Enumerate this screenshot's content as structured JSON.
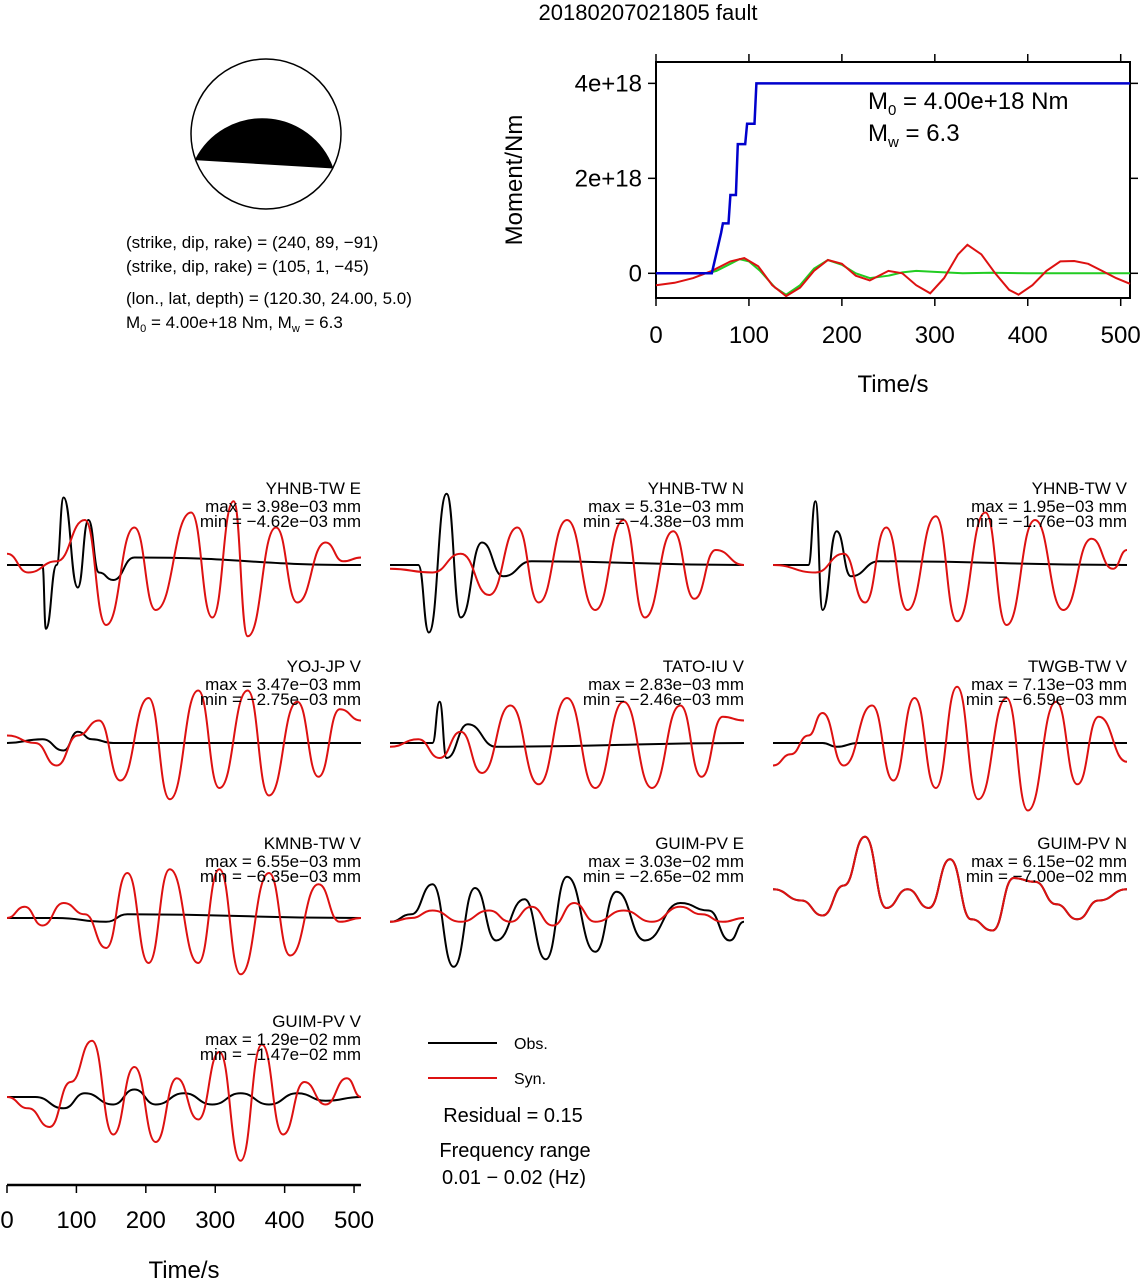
{
  "title": "20180207021805 fault",
  "mechanism": {
    "lines": [
      "(strike, dip, rake) = (240, 89, −91)",
      "(strike, dip, rake) = (105, 1, −45)",
      "(lon., lat, depth) = (120.30, 24.00, 5.0)"
    ],
    "m0_text": "M",
    "m0_sub": "0",
    "m0_mid": " = 4.00e+18 Nm, M",
    "mw_sub": "w",
    "mw_end": " = 6.3"
  },
  "moment_chart": {
    "type": "line",
    "xlabel": "Time/s",
    "ylabel": "Moment/Nm",
    "xlim": [
      0,
      510
    ],
    "ylim": [
      -5.2e+17,
      4.45e+18
    ],
    "x_ticks": [
      "0",
      "100",
      "200",
      "300",
      "400",
      "500"
    ],
    "y_ticks": [
      "0",
      "2e+18",
      "4e+18"
    ],
    "annot_m0": {
      "sym": "M",
      "sub": "0",
      "rest": " = 4.00e+18 Nm"
    },
    "annot_mw": {
      "sym": "M",
      "sub": "w",
      "rest": " = 6.3"
    },
    "colors": {
      "cumulative": "#0000cc",
      "rate_green": "#22cc22",
      "rate_red": "#dd1111"
    },
    "cumulative": {
      "x": [
        0,
        60,
        70,
        72,
        78,
        80,
        86,
        88,
        96,
        98,
        106,
        108,
        510
      ],
      "y": [
        0,
        0,
        8.5e+17,
        1.05e+18,
        1.05e+18,
        1.65e+18,
        1.65e+18,
        2.72e+18,
        2.72e+18,
        3.15e+18,
        3.15e+18,
        4e+18,
        4e+18
      ]
    },
    "rate_green": {
      "x": [
        0,
        55,
        65,
        80,
        90,
        100,
        112,
        128,
        140,
        155,
        170,
        185,
        200,
        215,
        230,
        250,
        265,
        280,
        300,
        330,
        360,
        400,
        450,
        510
      ],
      "y": [
        0,
        0,
        5e+16,
        2e+17,
        3e+17,
        2.5e+17,
        5e+16,
        -3e+17,
        -4.5e+17,
        -2.5e+17,
        1e+17,
        2.8e+17,
        1.8e+17,
        0,
        -1e+17,
        -5e+16,
        2e+16,
        5e+16,
        3e+16,
        0,
        1e+16,
        0,
        0,
        0
      ]
    },
    "rate_red": {
      "x": [
        0,
        20,
        40,
        60,
        80,
        95,
        110,
        125,
        140,
        155,
        170,
        185,
        200,
        215,
        230,
        250,
        265,
        280,
        295,
        310,
        325,
        335,
        350,
        365,
        380,
        390,
        405,
        420,
        435,
        450,
        465,
        480,
        495,
        510
      ],
      "y": [
        -2.5e+17,
        -2e+17,
        -1e+17,
        5e+16,
        2.5e+17,
        3.2e+17,
        1.5e+17,
        -2.5e+17,
        -4.8e+17,
        -3e+17,
        5e+16,
        2.8e+17,
        2e+17,
        -5e+16,
        -1.5e+17,
        5e+16,
        0,
        -2.5e+17,
        -4.2e+17,
        -1e+17,
        4e+17,
        6e+17,
        4e+17,
        0,
        -3.5e+17,
        -4.5e+17,
        -2.5e+17,
        5e+16,
        2.5e+17,
        2.6e+17,
        2e+17,
        5e+16,
        -1e+17,
        -2.2e+17
      ]
    }
  },
  "traces": [
    {
      "station": "YHNB-TW E",
      "max_label": "max = 3.98e−03 mm",
      "min_label": "min = −4.62e−03 mm"
    },
    {
      "station": "YHNB-TW N",
      "max_label": "max = 5.31e−03 mm",
      "min_label": "min = −4.38e−03 mm"
    },
    {
      "station": "YHNB-TW V",
      "max_label": "max = 1.95e−03 mm",
      "min_label": "min = −1.76e−03 mm"
    },
    {
      "station": "YOJ-JP V",
      "max_label": "max = 3.47e−03 mm",
      "min_label": "min = −2.75e−03 mm"
    },
    {
      "station": "TATO-IU V",
      "max_label": "max = 2.83e−03 mm",
      "min_label": "min = −2.46e−03 mm"
    },
    {
      "station": "TWGB-TW V",
      "max_label": "max = 7.13e−03 mm",
      "min_label": "min = −6.59e−03 mm"
    },
    {
      "station": "KMNB-TW V",
      "max_label": "max = 6.55e−03 mm",
      "min_label": "min = −6.35e−03 mm"
    },
    {
      "station": "GUIM-PV E",
      "max_label": "max = 3.03e−02 mm",
      "min_label": "min = −2.65e−02 mm"
    },
    {
      "station": "GUIM-PV N",
      "max_label": "max = 6.15e−02 mm",
      "min_label": "min = −7.00e−02 mm"
    },
    {
      "station": "GUIM-PV V",
      "max_label": "max = 1.29e−02 mm",
      "min_label": "min = −1.47e−02 mm"
    }
  ],
  "bottom_axis": {
    "xlabel": "Time/s",
    "x_ticks": [
      "0",
      "100",
      "200",
      "300",
      "400",
      "500"
    ],
    "xlim": [
      0,
      510
    ]
  },
  "legend": {
    "obs_label": "Obs.",
    "syn_label": "Syn.",
    "obs_color": "#000000",
    "syn_color": "#dd1111"
  },
  "residual": "Residual = 0.15",
  "freq_title": "Frequency range",
  "freq_range": "0.01 − 0.02 (Hz)"
}
